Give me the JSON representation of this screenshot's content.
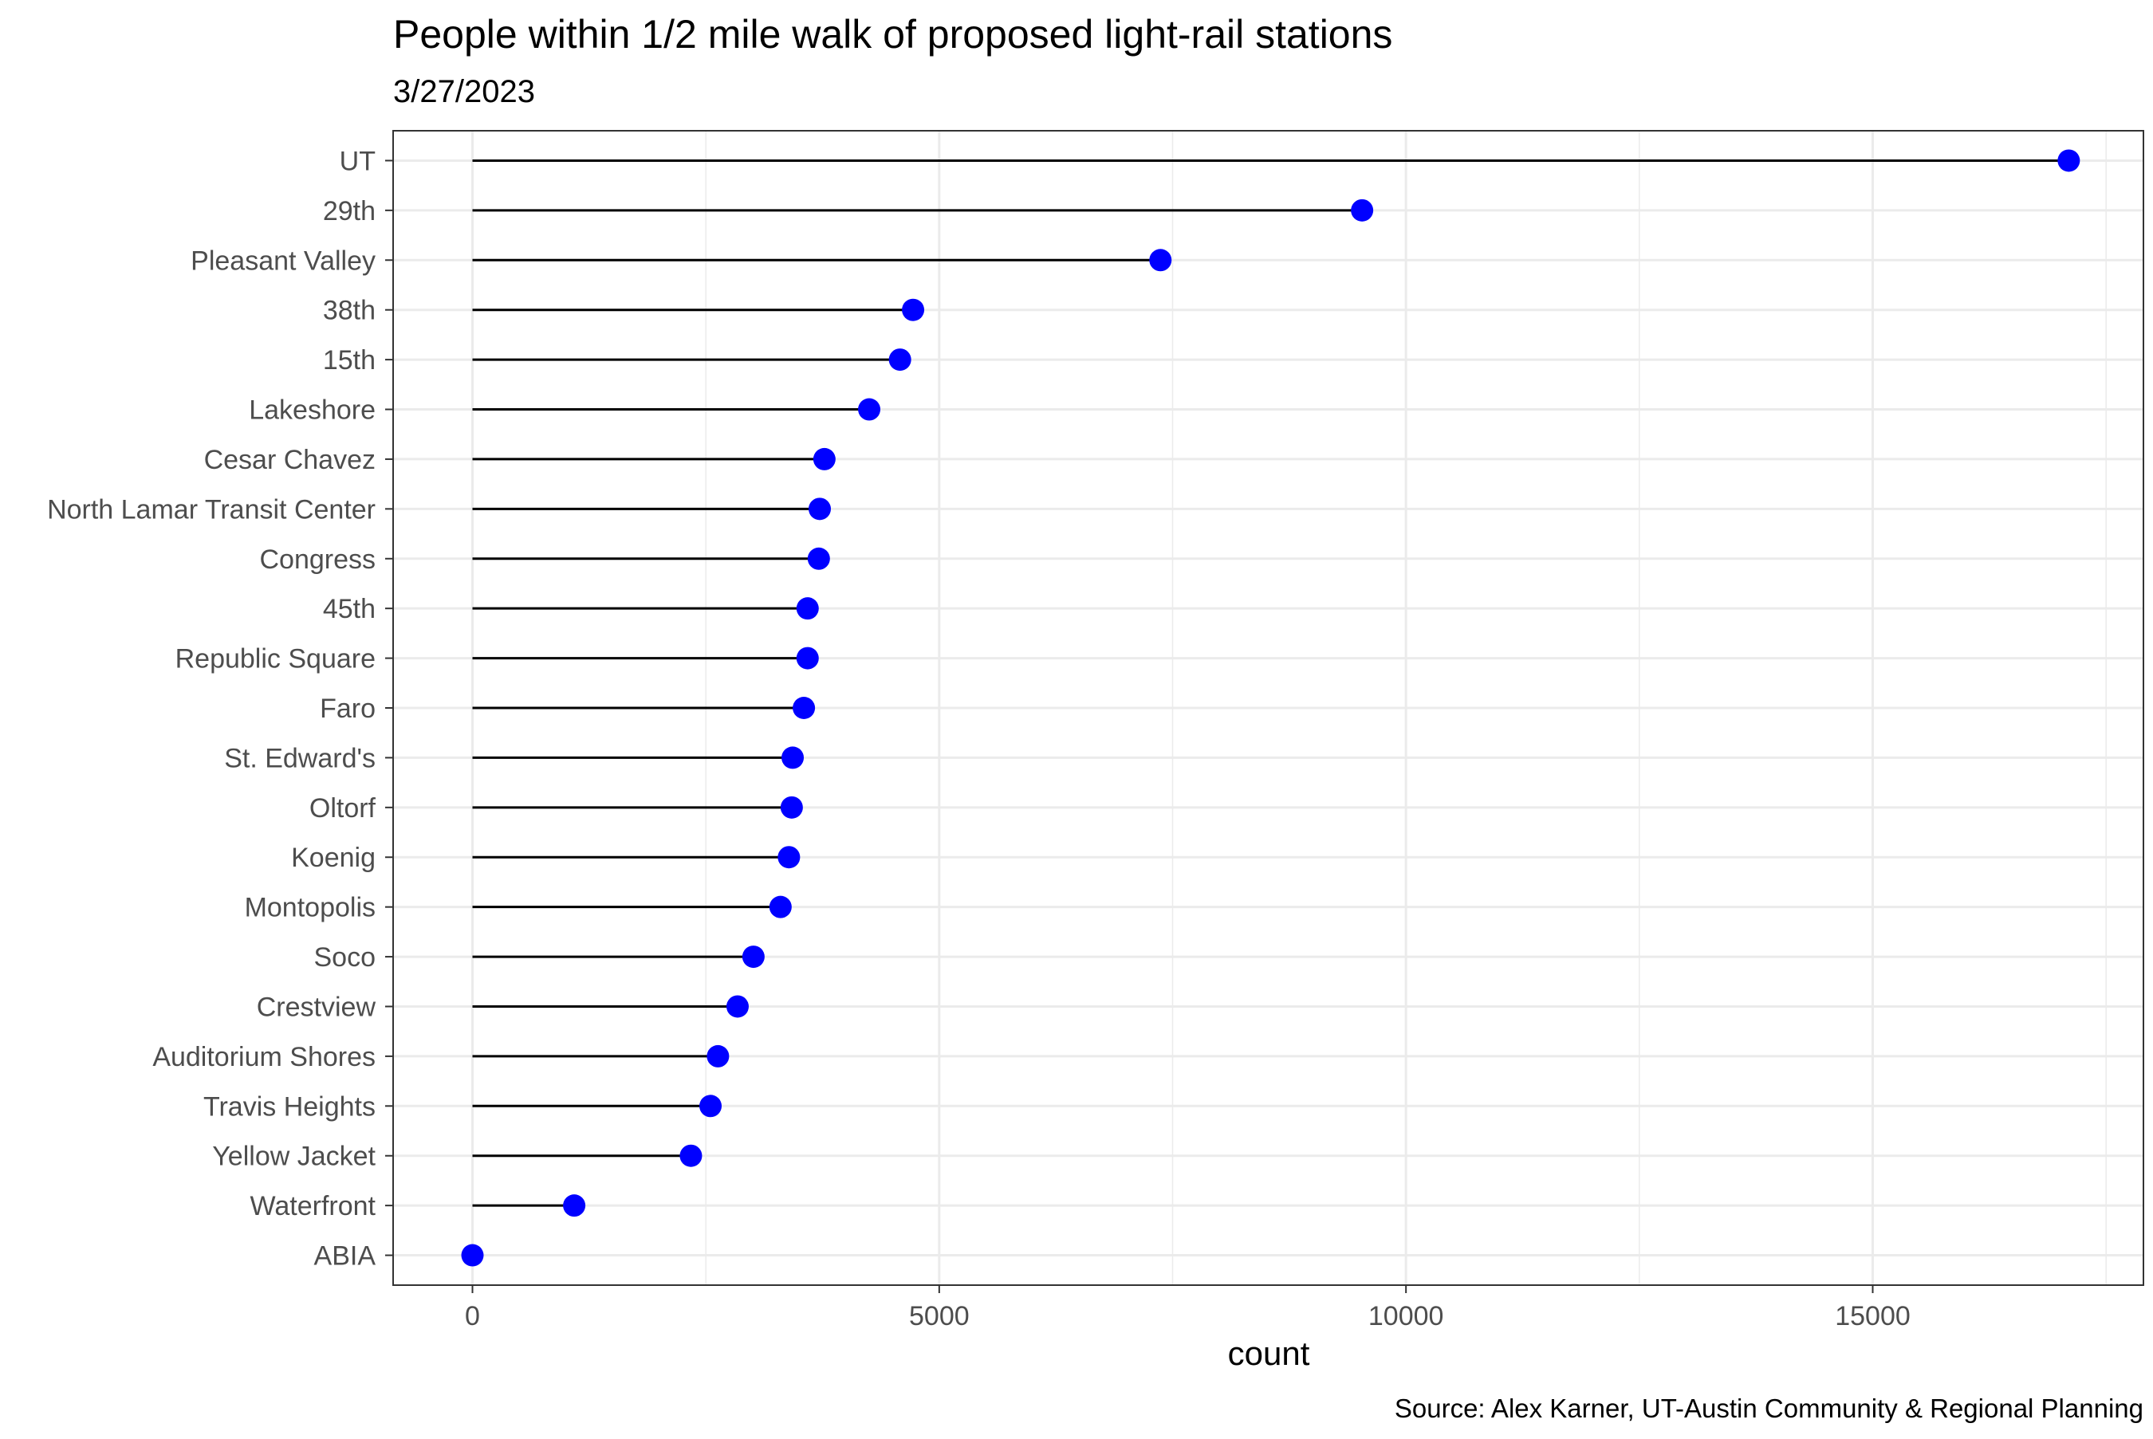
{
  "chart_data": {
    "type": "lollipop",
    "title": "People within 1/2 mile walk of proposed light-rail stations",
    "subtitle": "3/27/2023",
    "xlabel": "count",
    "ylabel": "",
    "caption": "Source: Alex Karner, UT-Austin Community & Regional Planning",
    "xlim": [
      -850,
      17900
    ],
    "x_ticks": [
      0,
      5000,
      10000,
      15000
    ],
    "x_tick_labels": [
      "0",
      "5000",
      "10000",
      "15000"
    ],
    "grid": true,
    "legend": "none",
    "colors": {
      "point": "#0000ff",
      "segment": "#000000",
      "panel_border": "#333333",
      "grid": "#ebebeb"
    },
    "categories": [
      "UT",
      "29th",
      "Pleasant Valley",
      "38th",
      "15th",
      "Lakeshore",
      "Cesar Chavez",
      "North Lamar Transit Center",
      "Congress",
      "45th",
      "Republic Square",
      "Faro",
      "St. Edward's",
      "Oltorf",
      "Koenig",
      "Montopolis",
      "Soco",
      "Crestview",
      "Auditorium Shores",
      "Travis Heights",
      "Yellow Jacket",
      "Waterfront",
      "ABIA"
    ],
    "values": [
      17100,
      9530,
      7370,
      4720,
      4580,
      4250,
      3770,
      3720,
      3710,
      3590,
      3590,
      3550,
      3430,
      3420,
      3390,
      3300,
      3010,
      2840,
      2630,
      2550,
      2340,
      1090,
      0
    ]
  }
}
